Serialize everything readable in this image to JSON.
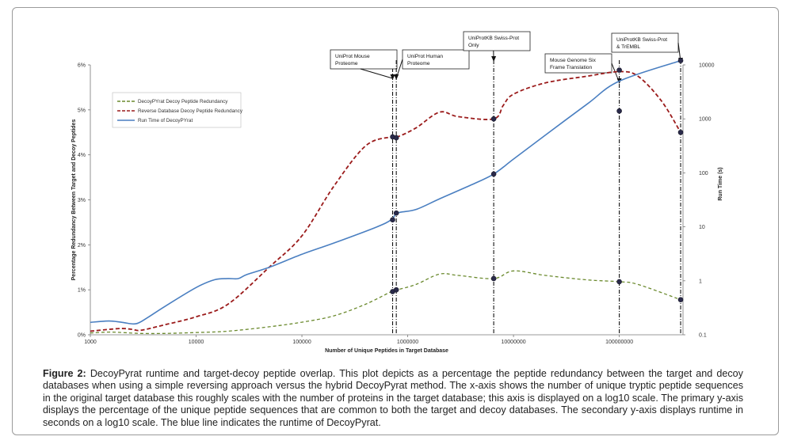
{
  "figure": {
    "caption_label": "Figure 2:",
    "caption_text": " DecoyPyrat runtime and target-decoy peptide overlap. This plot depicts as a percentage the peptide redundancy between the target and decoy databases when using a simple reversing approach versus the hybrid DecoyPyrat method. The x-axis shows the number of unique tryptic peptide sequences in the original target database this roughly scales with the number of proteins in the target database; this axis is displayed on a log10 scale. The primary y-axis displays the percentage of the unique peptide sequences that are common to both the target and decoy databases. The secondary y-axis displays runtime in seconds on a log10 scale. The blue line indicates the runtime of DecoyPyrat."
  },
  "chart_data": {
    "type": "line",
    "xlabel": "Number of Unique Peptides in Target Database",
    "ylabel": "Percentage Redundancy Between Target and Decoy Peptides",
    "y2label": "Run Time (s)",
    "x_scale": "log10",
    "xlim": [
      1000,
      400000000
    ],
    "x_ticks": [
      1000,
      10000,
      100000,
      1000000,
      10000000,
      100000000
    ],
    "x_tick_labels": [
      "1000",
      "10000",
      "100000",
      "1000000",
      "10000000",
      "100000000"
    ],
    "ylim": [
      0,
      6
    ],
    "y_ticks": [
      0,
      1,
      2,
      3,
      4,
      5,
      6
    ],
    "y_tick_labels": [
      "0%",
      "1%",
      "2%",
      "3%",
      "4%",
      "5%",
      "6%"
    ],
    "y2_scale": "log10",
    "y2lim": [
      0.1,
      10000
    ],
    "y2_ticks": [
      0.1,
      1,
      10,
      100,
      1000,
      10000
    ],
    "y2_tick_labels": [
      "0.1",
      "1",
      "10",
      "100",
      "1000",
      "10000"
    ],
    "grid": false,
    "legend_position": "upper-left",
    "series": [
      {
        "name": "DecoyPYrat Decoy Peptide Redundancy",
        "axis": "left",
        "color": "#6b8a2e",
        "style": "dashed",
        "x": [
          1000,
          1500,
          2000,
          3000,
          5000,
          10000,
          20000,
          50000,
          100000,
          200000,
          400000,
          700000,
          800000,
          1200000,
          2000000,
          3000000,
          6500000,
          10000000,
          20000000,
          50000000,
          100000000,
          150000000,
          380000000
        ],
        "y": [
          0.04,
          0.06,
          0.05,
          0.03,
          0.03,
          0.05,
          0.08,
          0.18,
          0.28,
          0.42,
          0.68,
          0.96,
          1.0,
          1.12,
          1.35,
          1.32,
          1.25,
          1.42,
          1.32,
          1.22,
          1.18,
          1.12,
          0.78
        ]
      },
      {
        "name": "Reverse Database Decoy Peptide Redundancy",
        "axis": "left",
        "color": "#9b1b1b",
        "style": "dashed",
        "x": [
          1000,
          1500,
          2000,
          2500,
          3000,
          5000,
          10000,
          20000,
          50000,
          100000,
          200000,
          400000,
          700000,
          800000,
          1200000,
          2000000,
          3000000,
          6500000,
          8000000,
          10000000,
          20000000,
          50000000,
          100000000,
          150000000,
          250000000,
          380000000
        ],
        "y": [
          0.08,
          0.12,
          0.14,
          0.12,
          0.1,
          0.22,
          0.4,
          0.68,
          1.52,
          2.2,
          3.3,
          4.2,
          4.4,
          4.4,
          4.6,
          4.95,
          4.85,
          4.8,
          5.1,
          5.35,
          5.6,
          5.75,
          5.85,
          5.75,
          5.2,
          4.5
        ]
      },
      {
        "name": "Run Time of DecoyPYrat",
        "axis": "right",
        "color": "#4a7fc1",
        "style": "solid",
        "x": [
          1000,
          1500,
          2000,
          2700,
          3500,
          5000,
          10000,
          15000,
          20000,
          25000,
          30000,
          50000,
          100000,
          200000,
          500000,
          700000,
          800000,
          1200000,
          2000000,
          4000000,
          6500000,
          10000000,
          20000000,
          50000000,
          100000000,
          380000000
        ],
        "y": [
          0.17,
          0.18,
          0.17,
          0.16,
          0.21,
          0.33,
          0.75,
          1.05,
          1.1,
          1.1,
          1.3,
          1.8,
          3.1,
          5.0,
          9.8,
          13.5,
          18.0,
          21.0,
          33.0,
          60.0,
          95.0,
          180.0,
          500.0,
          1900.0,
          5000.0,
          12000.0
        ]
      }
    ],
    "markers": [
      {
        "x": 720000,
        "y": 4.4,
        "axis": "left"
      },
      {
        "x": 780000,
        "y": 4.38,
        "axis": "left"
      },
      {
        "x": 6500000,
        "y": 4.8,
        "axis": "left"
      },
      {
        "x": 380000000,
        "y": 4.5,
        "axis": "left"
      },
      {
        "x": 720000,
        "y": 0.96,
        "axis": "left"
      },
      {
        "x": 780000,
        "y": 1.0,
        "axis": "left"
      },
      {
        "x": 6500000,
        "y": 1.25,
        "axis": "left"
      },
      {
        "x": 100000000,
        "y": 1.18,
        "axis": "left"
      },
      {
        "x": 380000000,
        "y": 0.78,
        "axis": "left"
      },
      {
        "x": 720000,
        "y": 13.5,
        "axis": "right"
      },
      {
        "x": 780000,
        "y": 18.0,
        "axis": "right"
      },
      {
        "x": 6500000,
        "y": 95.0,
        "axis": "right"
      },
      {
        "x": 100000000,
        "y": 1400.0,
        "axis": "right"
      },
      {
        "x": 100000000,
        "y": 8000.0,
        "axis": "right"
      },
      {
        "x": 380000000,
        "y": 12000.0,
        "axis": "right"
      }
    ],
    "annotations": [
      {
        "text": [
          "UniProt Mouse",
          "Proteome"
        ],
        "x": 720000
      },
      {
        "text": [
          "UniProt Human",
          "Proteome"
        ],
        "x": 780000
      },
      {
        "text": [
          "UniProtKB Swiss-Prot",
          "Only"
        ],
        "x": 6500000
      },
      {
        "text": [
          "Mouse Genome Six",
          "Frame Translation"
        ],
        "x": 100000000
      },
      {
        "text": [
          "UniProtKB Swiss-Prot",
          "& TrEMBL"
        ],
        "x": 380000000
      }
    ]
  }
}
